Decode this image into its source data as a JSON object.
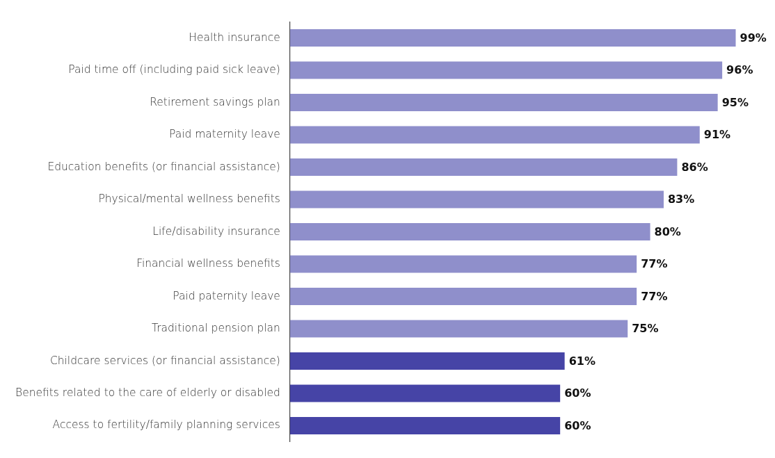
{
  "chart_data": {
    "type": "bar",
    "orientation": "horizontal",
    "categories": [
      "Health insurance",
      "Paid time off (including paid sick leave)",
      "Retirement savings plan",
      "Paid maternity leave",
      "Education benefits (or financial assistance)",
      "Physical/mental wellness benefits",
      "Life/disability insurance",
      "Financial wellness benefits",
      "Paid paternity leave",
      "Traditional pension plan",
      "Childcare services (or financial assistance)",
      "Benefits related to the care of elderly or disabled",
      "Access to fertility/family planning services"
    ],
    "values": [
      99,
      96,
      95,
      91,
      86,
      83,
      80,
      77,
      77,
      75,
      61,
      60,
      60
    ],
    "colors": [
      "#8f8fcb",
      "#8f8fcb",
      "#8f8fcb",
      "#8f8fcb",
      "#8f8fcb",
      "#8f8fcb",
      "#8f8fcb",
      "#8f8fcb",
      "#8f8fcb",
      "#8f8fcb",
      "#4644a6",
      "#4644a6",
      "#4644a6"
    ],
    "value_labels": [
      "99%",
      "96%",
      "95%",
      "91%",
      "86%",
      "83%",
      "80%",
      "77%",
      "77%",
      "75%",
      "61%",
      "60%",
      "60%"
    ],
    "tick_labels": "y",
    "grid": false,
    "legend": false
  }
}
